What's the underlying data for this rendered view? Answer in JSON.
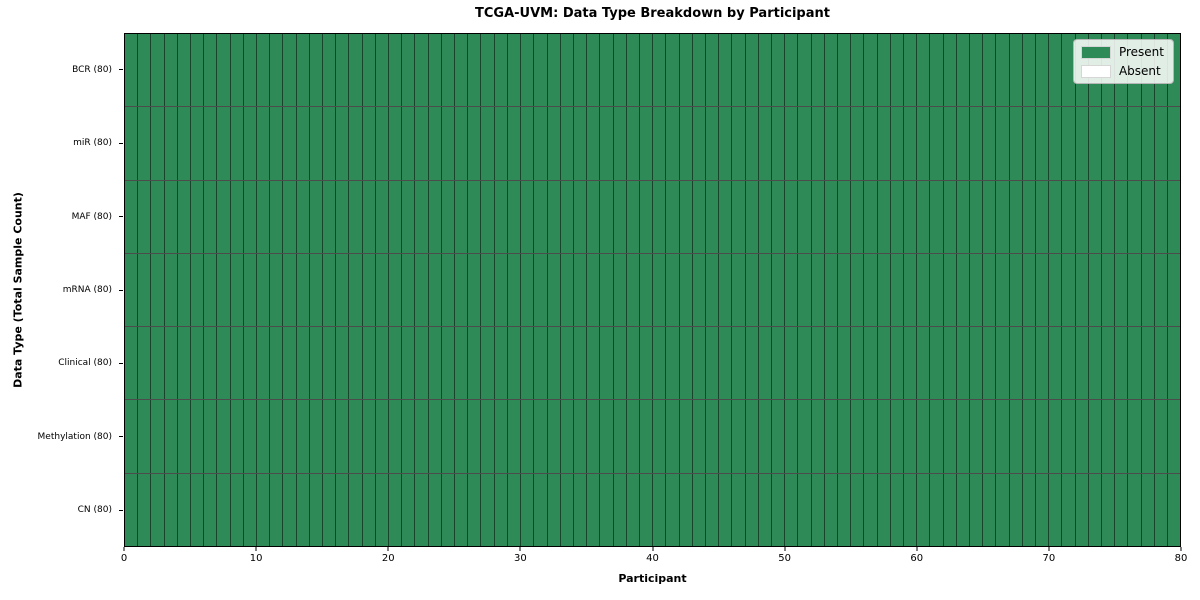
{
  "title": "TCGA-UVM: Data Type Breakdown by Participant",
  "x_axis": {
    "label": "Participant",
    "min": 0,
    "max": 80,
    "ticks": [
      0,
      10,
      20,
      30,
      40,
      50,
      60,
      70,
      80
    ]
  },
  "y_axis": {
    "label": "Data Type (Total Sample Count)",
    "tick_labels": [
      "BCR (80)",
      "miR (80)",
      "MAF (80)",
      "mRNA (80)",
      "Clinical (80)",
      "Methylation (80)",
      "CN (80)"
    ]
  },
  "legend": {
    "items": [
      {
        "label": "Present",
        "color": "#2e8b57"
      },
      {
        "label": "Absent",
        "color": "#ffffff"
      }
    ]
  },
  "colors": {
    "present": "#2e8b57",
    "absent": "#ffffff",
    "cell_edge": "rgba(0,0,0,0.5)",
    "plot_border": "#000000"
  },
  "chart_data": {
    "type": "heatmap",
    "title": "TCGA-UVM: Data Type Breakdown by Participant",
    "xlabel": "Participant",
    "ylabel": "Data Type (Total Sample Count)",
    "x_range": [
      0,
      80
    ],
    "x_ticks": [
      0,
      10,
      20,
      30,
      40,
      50,
      60,
      70,
      80
    ],
    "n_participants": 80,
    "legend_entries": [
      "Present",
      "Absent"
    ],
    "legend_position": "upper right",
    "grid": "cell-borders",
    "value_encoding": {
      "1": "Present",
      "0": "Absent"
    },
    "rows": [
      {
        "label": "BCR (80)",
        "data_type": "BCR",
        "total_sample_count": 80,
        "present_count": 80,
        "absent_count": 0,
        "values": [
          1,
          1,
          1,
          1,
          1,
          1,
          1,
          1,
          1,
          1,
          1,
          1,
          1,
          1,
          1,
          1,
          1,
          1,
          1,
          1,
          1,
          1,
          1,
          1,
          1,
          1,
          1,
          1,
          1,
          1,
          1,
          1,
          1,
          1,
          1,
          1,
          1,
          1,
          1,
          1,
          1,
          1,
          1,
          1,
          1,
          1,
          1,
          1,
          1,
          1,
          1,
          1,
          1,
          1,
          1,
          1,
          1,
          1,
          1,
          1,
          1,
          1,
          1,
          1,
          1,
          1,
          1,
          1,
          1,
          1,
          1,
          1,
          1,
          1,
          1,
          1,
          1,
          1,
          1,
          1
        ]
      },
      {
        "label": "miR (80)",
        "data_type": "miR",
        "total_sample_count": 80,
        "present_count": 80,
        "absent_count": 0,
        "values": [
          1,
          1,
          1,
          1,
          1,
          1,
          1,
          1,
          1,
          1,
          1,
          1,
          1,
          1,
          1,
          1,
          1,
          1,
          1,
          1,
          1,
          1,
          1,
          1,
          1,
          1,
          1,
          1,
          1,
          1,
          1,
          1,
          1,
          1,
          1,
          1,
          1,
          1,
          1,
          1,
          1,
          1,
          1,
          1,
          1,
          1,
          1,
          1,
          1,
          1,
          1,
          1,
          1,
          1,
          1,
          1,
          1,
          1,
          1,
          1,
          1,
          1,
          1,
          1,
          1,
          1,
          1,
          1,
          1,
          1,
          1,
          1,
          1,
          1,
          1,
          1,
          1,
          1,
          1,
          1
        ]
      },
      {
        "label": "MAF (80)",
        "data_type": "MAF",
        "total_sample_count": 80,
        "present_count": 80,
        "absent_count": 0,
        "values": [
          1,
          1,
          1,
          1,
          1,
          1,
          1,
          1,
          1,
          1,
          1,
          1,
          1,
          1,
          1,
          1,
          1,
          1,
          1,
          1,
          1,
          1,
          1,
          1,
          1,
          1,
          1,
          1,
          1,
          1,
          1,
          1,
          1,
          1,
          1,
          1,
          1,
          1,
          1,
          1,
          1,
          1,
          1,
          1,
          1,
          1,
          1,
          1,
          1,
          1,
          1,
          1,
          1,
          1,
          1,
          1,
          1,
          1,
          1,
          1,
          1,
          1,
          1,
          1,
          1,
          1,
          1,
          1,
          1,
          1,
          1,
          1,
          1,
          1,
          1,
          1,
          1,
          1,
          1,
          1
        ]
      },
      {
        "label": "mRNA (80)",
        "data_type": "mRNA",
        "total_sample_count": 80,
        "present_count": 80,
        "absent_count": 0,
        "values": [
          1,
          1,
          1,
          1,
          1,
          1,
          1,
          1,
          1,
          1,
          1,
          1,
          1,
          1,
          1,
          1,
          1,
          1,
          1,
          1,
          1,
          1,
          1,
          1,
          1,
          1,
          1,
          1,
          1,
          1,
          1,
          1,
          1,
          1,
          1,
          1,
          1,
          1,
          1,
          1,
          1,
          1,
          1,
          1,
          1,
          1,
          1,
          1,
          1,
          1,
          1,
          1,
          1,
          1,
          1,
          1,
          1,
          1,
          1,
          1,
          1,
          1,
          1,
          1,
          1,
          1,
          1,
          1,
          1,
          1,
          1,
          1,
          1,
          1,
          1,
          1,
          1,
          1,
          1,
          1
        ]
      },
      {
        "label": "Clinical (80)",
        "data_type": "Clinical",
        "total_sample_count": 80,
        "present_count": 80,
        "absent_count": 0,
        "values": [
          1,
          1,
          1,
          1,
          1,
          1,
          1,
          1,
          1,
          1,
          1,
          1,
          1,
          1,
          1,
          1,
          1,
          1,
          1,
          1,
          1,
          1,
          1,
          1,
          1,
          1,
          1,
          1,
          1,
          1,
          1,
          1,
          1,
          1,
          1,
          1,
          1,
          1,
          1,
          1,
          1,
          1,
          1,
          1,
          1,
          1,
          1,
          1,
          1,
          1,
          1,
          1,
          1,
          1,
          1,
          1,
          1,
          1,
          1,
          1,
          1,
          1,
          1,
          1,
          1,
          1,
          1,
          1,
          1,
          1,
          1,
          1,
          1,
          1,
          1,
          1,
          1,
          1,
          1,
          1
        ]
      },
      {
        "label": "Methylation (80)",
        "data_type": "Methylation",
        "total_sample_count": 80,
        "present_count": 80,
        "absent_count": 0,
        "values": [
          1,
          1,
          1,
          1,
          1,
          1,
          1,
          1,
          1,
          1,
          1,
          1,
          1,
          1,
          1,
          1,
          1,
          1,
          1,
          1,
          1,
          1,
          1,
          1,
          1,
          1,
          1,
          1,
          1,
          1,
          1,
          1,
          1,
          1,
          1,
          1,
          1,
          1,
          1,
          1,
          1,
          1,
          1,
          1,
          1,
          1,
          1,
          1,
          1,
          1,
          1,
          1,
          1,
          1,
          1,
          1,
          1,
          1,
          1,
          1,
          1,
          1,
          1,
          1,
          1,
          1,
          1,
          1,
          1,
          1,
          1,
          1,
          1,
          1,
          1,
          1,
          1,
          1,
          1,
          1
        ]
      },
      {
        "label": "CN (80)",
        "data_type": "CN",
        "total_sample_count": 80,
        "present_count": 80,
        "absent_count": 0,
        "values": [
          1,
          1,
          1,
          1,
          1,
          1,
          1,
          1,
          1,
          1,
          1,
          1,
          1,
          1,
          1,
          1,
          1,
          1,
          1,
          1,
          1,
          1,
          1,
          1,
          1,
          1,
          1,
          1,
          1,
          1,
          1,
          1,
          1,
          1,
          1,
          1,
          1,
          1,
          1,
          1,
          1,
          1,
          1,
          1,
          1,
          1,
          1,
          1,
          1,
          1,
          1,
          1,
          1,
          1,
          1,
          1,
          1,
          1,
          1,
          1,
          1,
          1,
          1,
          1,
          1,
          1,
          1,
          1,
          1,
          1,
          1,
          1,
          1,
          1,
          1,
          1,
          1,
          1,
          1,
          1
        ]
      }
    ]
  }
}
